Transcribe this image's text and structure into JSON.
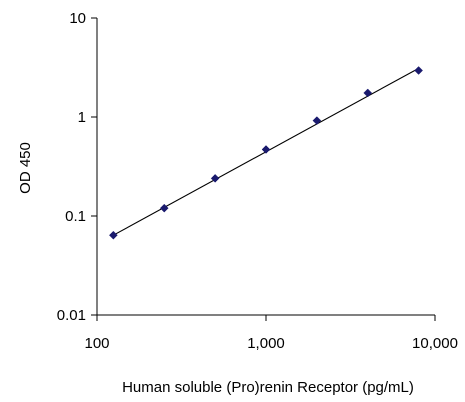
{
  "chart_data": {
    "type": "scatter",
    "title": "",
    "xlabel": "Human soluble (Pro)renin Receptor  (pg/mL)",
    "ylabel": "OD 450",
    "x_scale": "log",
    "y_scale": "log",
    "xlim": [
      100,
      10000
    ],
    "ylim": [
      0.01,
      10
    ],
    "x_ticks": [
      100,
      1000,
      10000
    ],
    "x_tick_labels": [
      "100",
      "1,000",
      "10,000"
    ],
    "y_ticks": [
      0.01,
      0.1,
      1,
      10
    ],
    "y_tick_labels": [
      "0.01",
      "0.1",
      "1",
      "10"
    ],
    "grid": false,
    "legend": "none",
    "series": [
      {
        "x": [
          125,
          250,
          500,
          1000,
          2000,
          4000,
          8000
        ],
        "y": [
          0.064,
          0.12,
          0.24,
          0.47,
          0.92,
          1.75,
          2.95
        ]
      }
    ],
    "fit_line": {
      "x": [
        125,
        8000
      ],
      "y": [
        0.064,
        3.1
      ]
    },
    "colors": {
      "marker": "#1a1a6e",
      "line": "#000000",
      "axis": "#000000"
    }
  }
}
